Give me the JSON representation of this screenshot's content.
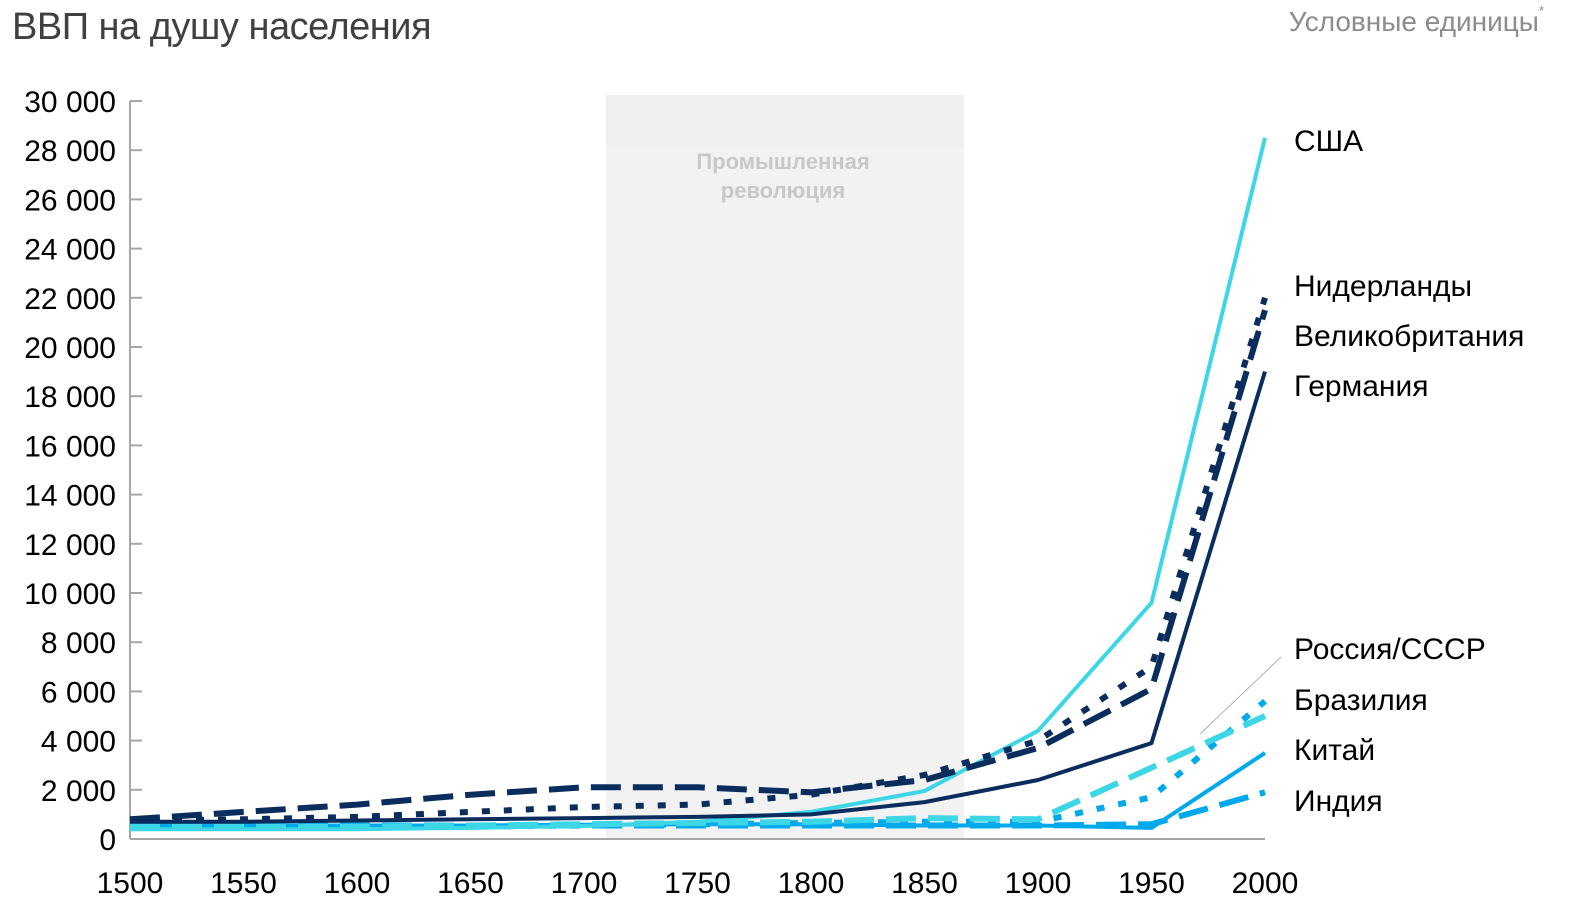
{
  "header": {
    "title": "ВВП на душу населения",
    "units": "Условные единицы",
    "units_footnote": "*"
  },
  "band": {
    "label_line1": "Промышленная",
    "label_line2": "революция",
    "x_start": 1710,
    "x_end": 1867,
    "color": "#f2f2f2"
  },
  "colors": {
    "navy": "#0a2d5e",
    "cyan": "#3dd6e6",
    "blue": "#00a9ec",
    "axis": "#a6a6a6",
    "connector": "#b0b0b0"
  },
  "chart_data": {
    "type": "line",
    "title": "ВВП на душу населения",
    "ylabel": "Условные единицы*",
    "xlabel": "",
    "xlim": [
      1500,
      2000
    ],
    "ylim": [
      0,
      30000
    ],
    "x": [
      1500,
      1550,
      1600,
      1650,
      1700,
      1750,
      1800,
      1850,
      1900,
      1950,
      2000
    ],
    "x_ticks": [
      "1500",
      "1550",
      "1600",
      "1650",
      "1700",
      "1750",
      "1800",
      "1850",
      "1900",
      "1950",
      "2000"
    ],
    "y_ticks": [
      "0",
      "2 000",
      "4 000",
      "6 000",
      "8 000",
      "10 000",
      "12 000",
      "14 000",
      "16 000",
      "18 000",
      "20 000",
      "22 000",
      "24 000",
      "26 000",
      "28 000",
      "30 000"
    ],
    "y_tick_values": [
      0,
      2000,
      4000,
      6000,
      8000,
      10000,
      12000,
      14000,
      16000,
      18000,
      20000,
      22000,
      24000,
      26000,
      28000,
      30000
    ],
    "grid": false,
    "legend_position": "right, inline labels",
    "annotations": [
      {
        "text": "Промышленная революция",
        "type": "shaded-band",
        "x_range": [
          1710,
          1867
        ]
      }
    ],
    "series": [
      {
        "name": "США",
        "style": "solid",
        "color": "#3dd6e6",
        "values": [
          400,
          400,
          400,
          450,
          530,
          700,
          1100,
          1950,
          4400,
          9600,
          28500
        ]
      },
      {
        "name": "Нидерланды",
        "style": "dotted",
        "color": "#0a2d5e",
        "values": [
          750,
          800,
          900,
          1100,
          1300,
          1400,
          1800,
          2600,
          4000,
          7000,
          22000
        ]
      },
      {
        "name": "Великобритания",
        "style": "dashed",
        "color": "#0a2d5e",
        "values": [
          800,
          1100,
          1400,
          1800,
          2100,
          2100,
          1900,
          2400,
          3700,
          6100,
          21500
        ]
      },
      {
        "name": "Германия",
        "style": "solid",
        "color": "#0a2d5e",
        "values": [
          700,
          700,
          750,
          800,
          850,
          900,
          1000,
          1500,
          2400,
          3900,
          19000
        ]
      },
      {
        "name": "Россия/СССР",
        "style": "dashed",
        "color": "#3dd6e6",
        "values": [
          500,
          500,
          500,
          550,
          600,
          650,
          700,
          850,
          800,
          2900,
          5000
        ]
      },
      {
        "name": "Бразилия",
        "style": "dotted",
        "color": "#00a9ec",
        "values": [
          450,
          450,
          450,
          500,
          550,
          600,
          650,
          700,
          700,
          1700,
          5600
        ]
      },
      {
        "name": "Китай",
        "style": "solid",
        "color": "#00a9ec",
        "values": [
          550,
          550,
          550,
          550,
          580,
          600,
          600,
          550,
          550,
          450,
          3500
        ]
      },
      {
        "name": "Индия",
        "style": "dashed",
        "color": "#00a9ec",
        "values": [
          550,
          550,
          550,
          550,
          550,
          550,
          550,
          550,
          550,
          600,
          1900
        ]
      }
    ]
  },
  "labels": {
    "usa": "США",
    "netherlands": "Нидерланды",
    "uk": "Великобритания",
    "germany": "Германия",
    "russia": "Россия/СССР",
    "brazil": "Бразилия",
    "china": "Китай",
    "india": "Индия"
  }
}
